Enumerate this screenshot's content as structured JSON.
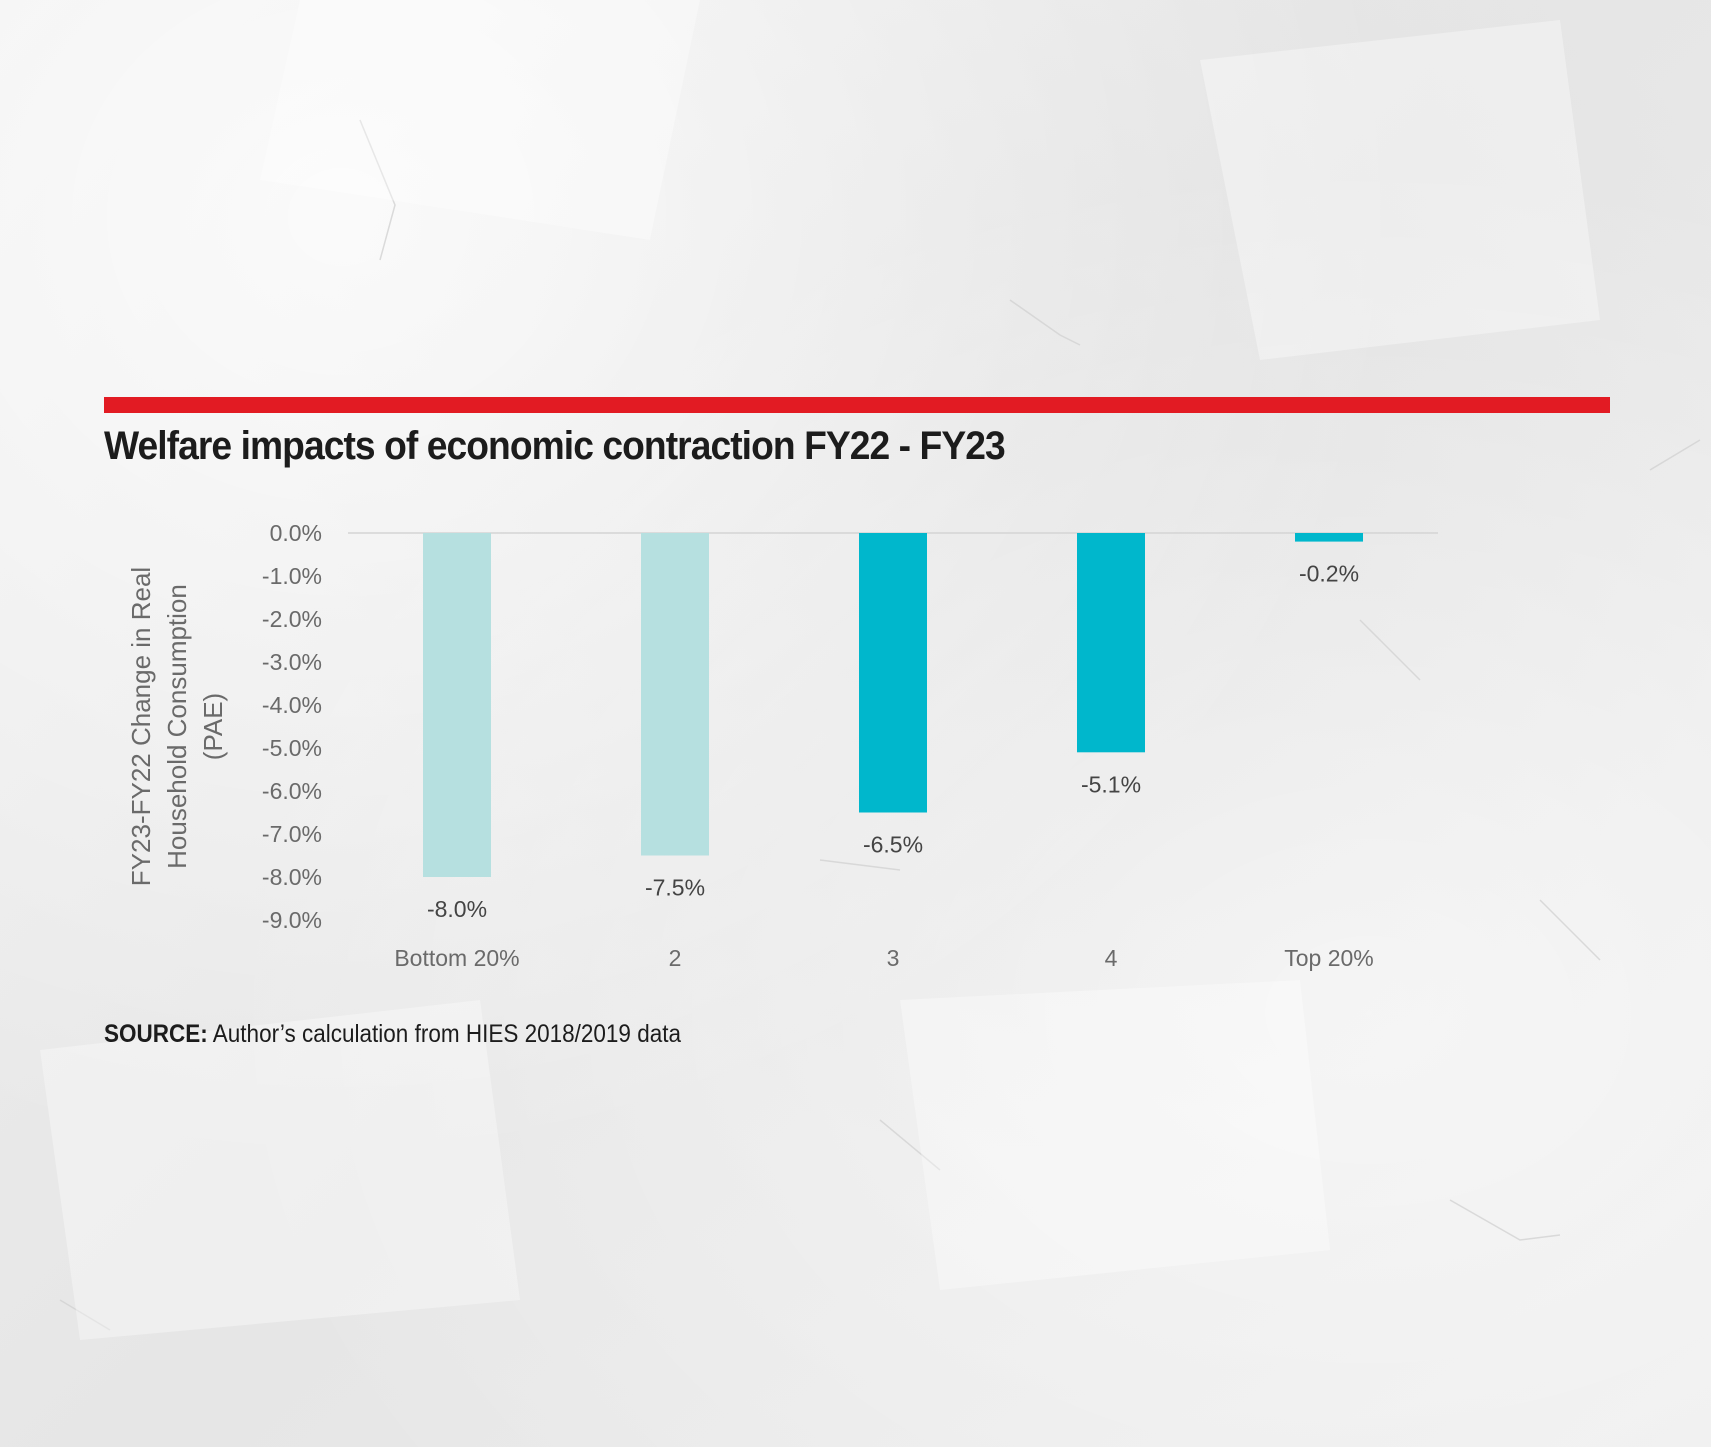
{
  "header": {
    "title": "Welfare impacts of economic contraction FY22 - FY23",
    "accent_color": "#e21b23"
  },
  "source": {
    "label": "SOURCE:",
    "text": "Author’s calculation from HIES 2018/2019 data"
  },
  "chart_data": {
    "type": "bar",
    "title": "Welfare impacts of economic contraction FY22 - FY23",
    "xlabel": "",
    "ylabel": "FY23-FY22 Change in Real Household Consumption (PAE)",
    "ylabel_lines": [
      "FY23-FY22 Change in Real",
      "Household Consumption",
      "(PAE)"
    ],
    "categories": [
      "Bottom 20%",
      "2",
      "3",
      "4",
      "Top 20%"
    ],
    "values": [
      -8.0,
      -7.5,
      -6.5,
      -5.1,
      -0.2
    ],
    "data_labels": [
      "-8.0%",
      "-7.5%",
      "-6.5%",
      "-5.1%",
      "-0.2%"
    ],
    "bar_colors": [
      "#b6e0e0",
      "#b6e0e0",
      "#00b7cc",
      "#00b7cc",
      "#00b7cc"
    ],
    "ylim": [
      -9.0,
      0.0
    ],
    "yticks": [
      0,
      -1,
      -2,
      -3,
      -4,
      -5,
      -6,
      -7,
      -8,
      -9
    ],
    "ytick_labels": [
      "0.0%",
      "-1.0%",
      "-2.0%",
      "-3.0%",
      "-4.0%",
      "-5.0%",
      "-6.0%",
      "-7.0%",
      "-8.0%",
      "-9.0%"
    ],
    "grid": false,
    "legend": "none"
  }
}
